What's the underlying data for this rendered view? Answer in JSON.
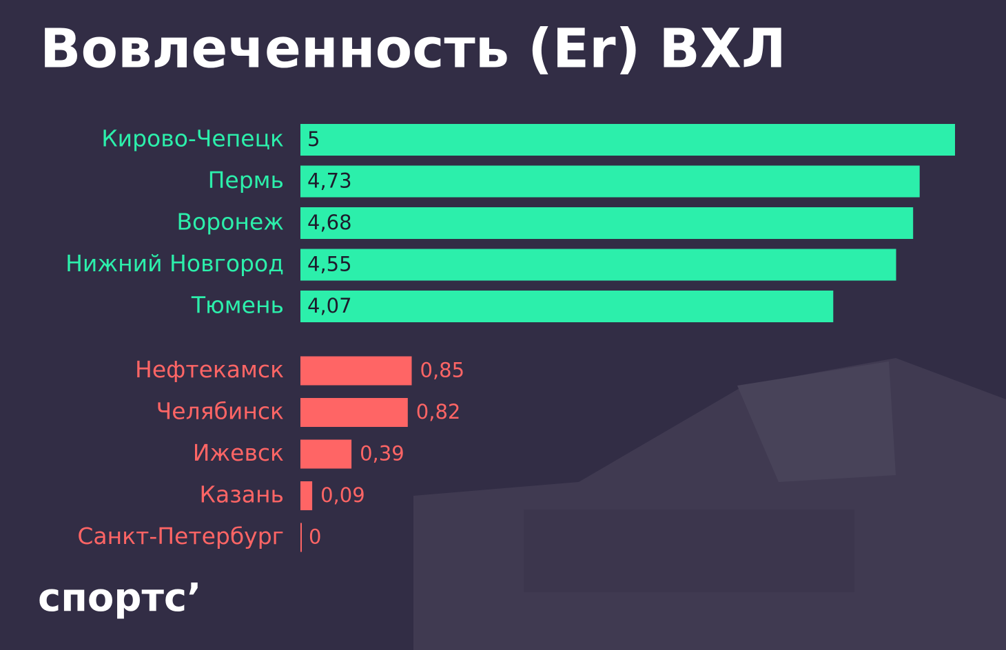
{
  "chart_data": {
    "type": "bar",
    "orientation": "horizontal",
    "title": "Вовлеченность (Er) ВХЛ",
    "categories": [
      "Кирово-Чепецк",
      "Пермь",
      "Воронеж",
      "Нижний Новгород",
      "Тюмень",
      "Нефтекамск",
      "Челябинск",
      "Ижевск",
      "Казань",
      "Санкт-Петербург"
    ],
    "values": [
      5,
      4.73,
      4.68,
      4.55,
      4.07,
      0.85,
      0.82,
      0.39,
      0.09,
      0
    ],
    "value_labels": [
      "5",
      "4,73",
      "4,68",
      "4,55",
      "4,07",
      "0,85",
      "0,82",
      "0,39",
      "0,09",
      "0"
    ],
    "colors": [
      "#2cefab",
      "#2cefab",
      "#2cefab",
      "#2cefab",
      "#2cefab",
      "#ff6565",
      "#ff6565",
      "#ff6565",
      "#ff6565",
      "#ff6565"
    ],
    "xlim": [
      0,
      5
    ]
  },
  "logo": "спортс’"
}
